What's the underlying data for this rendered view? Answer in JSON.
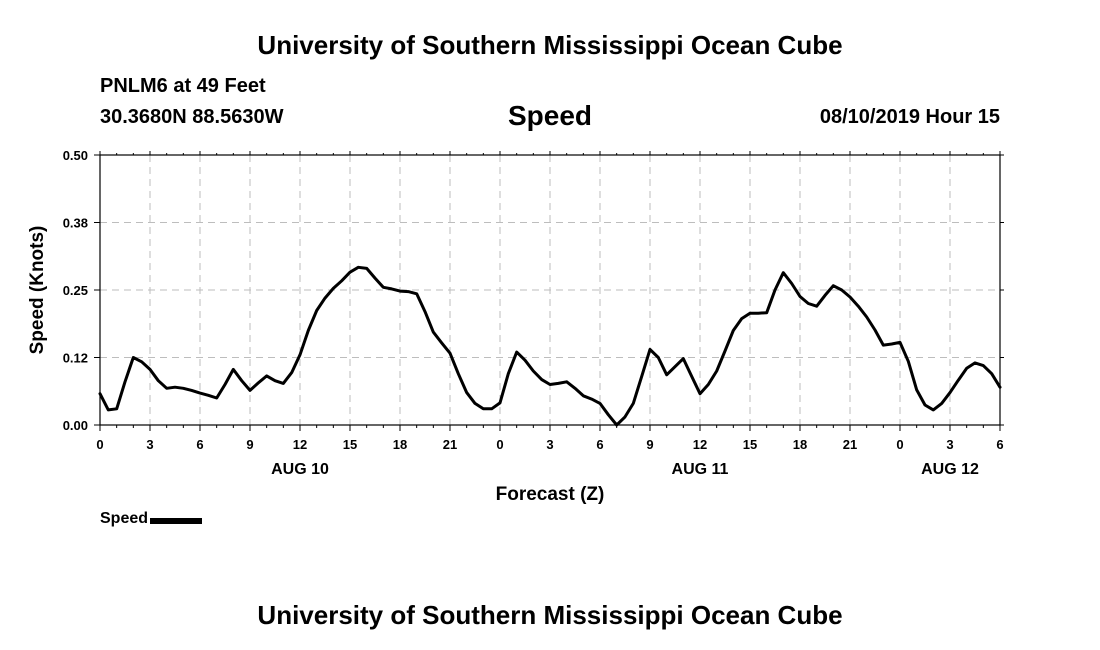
{
  "header": {
    "title": "University of Southern Mississippi Ocean Cube",
    "station": "PNLM6 at 49 Feet",
    "coords": "30.3680N 88.5630W",
    "chart_title": "Speed",
    "datetime": "08/10/2019 Hour 15"
  },
  "footer": {
    "title": "University of Southern Mississippi Ocean Cube"
  },
  "legend": {
    "label": "Speed",
    "color": "#000000"
  },
  "chart_data": {
    "type": "line",
    "title": "Speed",
    "xlabel": "Forecast (Z)",
    "ylabel": "Speed (Knots)",
    "xlim": [
      0,
      54
    ],
    "ylim": [
      0.0,
      0.5
    ],
    "y_ticks": [
      "0.00",
      "0.12",
      "0.25",
      "0.38",
      "0.50"
    ],
    "x_ticks": [
      {
        "x": 0,
        "label": "0"
      },
      {
        "x": 3,
        "label": "3"
      },
      {
        "x": 6,
        "label": "6"
      },
      {
        "x": 9,
        "label": "9"
      },
      {
        "x": 12,
        "label": "12"
      },
      {
        "x": 15,
        "label": "15"
      },
      {
        "x": 18,
        "label": "18"
      },
      {
        "x": 21,
        "label": "21"
      },
      {
        "x": 24,
        "label": "0"
      },
      {
        "x": 27,
        "label": "3"
      },
      {
        "x": 30,
        "label": "6"
      },
      {
        "x": 33,
        "label": "9"
      },
      {
        "x": 36,
        "label": "12"
      },
      {
        "x": 39,
        "label": "15"
      },
      {
        "x": 42,
        "label": "18"
      },
      {
        "x": 45,
        "label": "21"
      },
      {
        "x": 48,
        "label": "0"
      },
      {
        "x": 51,
        "label": "3"
      },
      {
        "x": 54,
        "label": "6"
      }
    ],
    "date_labels": [
      {
        "x": 12,
        "label": "AUG 10"
      },
      {
        "x": 36,
        "label": "AUG 11"
      },
      {
        "x": 51,
        "label": "AUG 12"
      }
    ],
    "grid": true,
    "series": [
      {
        "name": "Speed",
        "color": "#000000",
        "x": [
          0,
          0.5,
          1,
          1.5,
          2,
          2.5,
          3,
          3.5,
          4,
          4.5,
          5,
          5.5,
          6,
          6.5,
          7,
          7.5,
          8,
          8.5,
          9,
          9.5,
          10,
          10.5,
          11,
          11.5,
          12,
          12.5,
          13,
          13.5,
          14,
          14.5,
          15,
          15.5,
          16,
          16.5,
          17,
          17.5,
          18,
          18.5,
          19,
          19.5,
          20,
          20.5,
          21,
          21.5,
          22,
          22.5,
          23,
          23.5,
          24,
          24.5,
          25,
          25.5,
          26,
          26.5,
          27,
          27.5,
          28,
          28.5,
          29,
          29.5,
          30,
          30.5,
          31,
          31.5,
          32,
          32.5,
          33,
          33.5,
          34,
          34.5,
          35,
          35.5,
          36,
          36.5,
          37,
          37.5,
          38,
          38.5,
          39,
          39.5,
          40,
          40.5,
          41,
          41.5,
          42,
          42.5,
          43,
          43.5,
          44,
          44.5,
          45,
          45.5,
          46,
          46.5,
          47,
          47.5,
          48,
          48.5,
          49,
          49.5,
          50,
          50.5,
          51,
          51.5,
          52,
          52.5,
          53,
          53.5,
          54
        ],
        "values": [
          0.058,
          0.028,
          0.03,
          0.08,
          0.125,
          0.117,
          0.103,
          0.082,
          0.068,
          0.07,
          0.068,
          0.064,
          0.059,
          0.055,
          0.05,
          0.075,
          0.103,
          0.082,
          0.064,
          0.078,
          0.091,
          0.082,
          0.077,
          0.097,
          0.13,
          0.175,
          0.212,
          0.235,
          0.253,
          0.267,
          0.283,
          0.292,
          0.29,
          0.272,
          0.255,
          0.252,
          0.248,
          0.247,
          0.243,
          0.21,
          0.172,
          0.152,
          0.133,
          0.095,
          0.06,
          0.04,
          0.03,
          0.03,
          0.041,
          0.095,
          0.135,
          0.12,
          0.1,
          0.084,
          0.075,
          0.077,
          0.08,
          0.068,
          0.054,
          0.048,
          0.04,
          0.019,
          0.0,
          0.015,
          0.04,
          0.09,
          0.14,
          0.125,
          0.093,
          0.108,
          0.123,
          0.09,
          0.058,
          0.075,
          0.1,
          0.137,
          0.175,
          0.197,
          0.207,
          0.207,
          0.208,
          0.25,
          0.282,
          0.262,
          0.238,
          0.225,
          0.22,
          0.24,
          0.258,
          0.25,
          0.237,
          0.22,
          0.2,
          0.176,
          0.148,
          0.15,
          0.153,
          0.118,
          0.065,
          0.037,
          0.028,
          0.04,
          0.06,
          0.083,
          0.105,
          0.115,
          0.11,
          0.095,
          0.07
        ]
      }
    ]
  }
}
